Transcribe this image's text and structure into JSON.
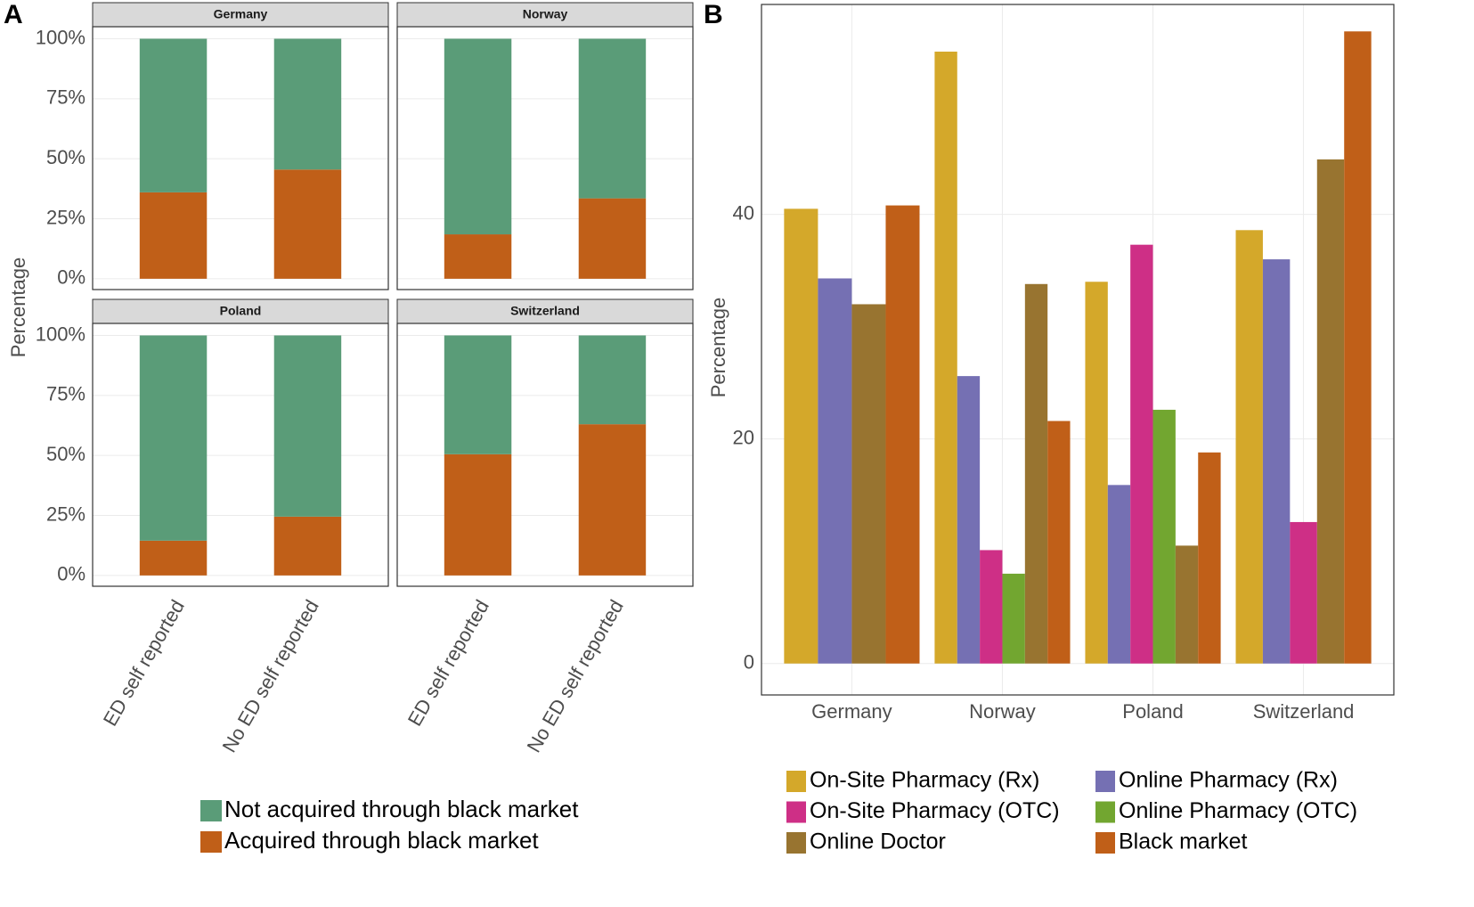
{
  "chart_data": [
    {
      "type": "facet_stacked_bar",
      "label": "A",
      "ylabel": "Percentage",
      "facets": [
        "Germany",
        "Norway",
        "Poland",
        "Switzerland"
      ],
      "categories": [
        "ED self reported",
        "No ED self reported"
      ],
      "series": [
        {
          "name": "Not acquired through black market",
          "color": "#5a9c78",
          "values": [
            [
              64,
              54.5
            ],
            [
              81.5,
              66.5
            ],
            [
              85.5,
              75.5
            ],
            [
              49.5,
              37
            ]
          ]
        },
        {
          "name": "Acquired through black market",
          "color": "#c05f18",
          "values": [
            [
              36,
              45.5
            ],
            [
              18.5,
              33.5
            ],
            [
              14.5,
              24.5
            ],
            [
              50.5,
              63
            ]
          ]
        }
      ],
      "ylim": [
        -4.5,
        105
      ],
      "yticks": [
        {
          "value": 0,
          "label": "0%"
        },
        {
          "value": 25,
          "label": "25%"
        },
        {
          "value": 50,
          "label": "50%"
        },
        {
          "value": 75,
          "label": "75%"
        },
        {
          "value": 100,
          "label": "100%"
        }
      ],
      "grid": true
    },
    {
      "type": "grouped_bar",
      "label": "B",
      "ylabel": "Percentage",
      "categories": [
        "Germany",
        "Norway",
        "Poland",
        "Switzerland"
      ],
      "series": [
        {
          "name": "On-Site Pharmacy (Rx)",
          "color": "#d4a82a",
          "values": [
            40.5,
            54.5,
            34.0,
            38.6
          ]
        },
        {
          "name": "Online Pharmacy (Rx)",
          "color": "#7570b3",
          "values": [
            34.3,
            25.6,
            15.9,
            36.0
          ]
        },
        {
          "name": "On-Site Pharmacy (OTC)",
          "color": "#ce2f86",
          "values": [
            null,
            10.1,
            37.3,
            12.6
          ]
        },
        {
          "name": "Online Pharmacy (OTC)",
          "color": "#72a630",
          "values": [
            null,
            8.0,
            22.6,
            null
          ]
        },
        {
          "name": "Online Doctor",
          "color": "#987430",
          "values": [
            32.0,
            33.8,
            10.5,
            44.9
          ]
        },
        {
          "name": "Black market",
          "color": "#c05f18",
          "values": [
            40.8,
            21.6,
            18.8,
            56.3
          ]
        }
      ],
      "ylim": [
        -2.8,
        58.7
      ],
      "yticks": [
        0,
        20,
        40
      ],
      "grid": true
    }
  ]
}
